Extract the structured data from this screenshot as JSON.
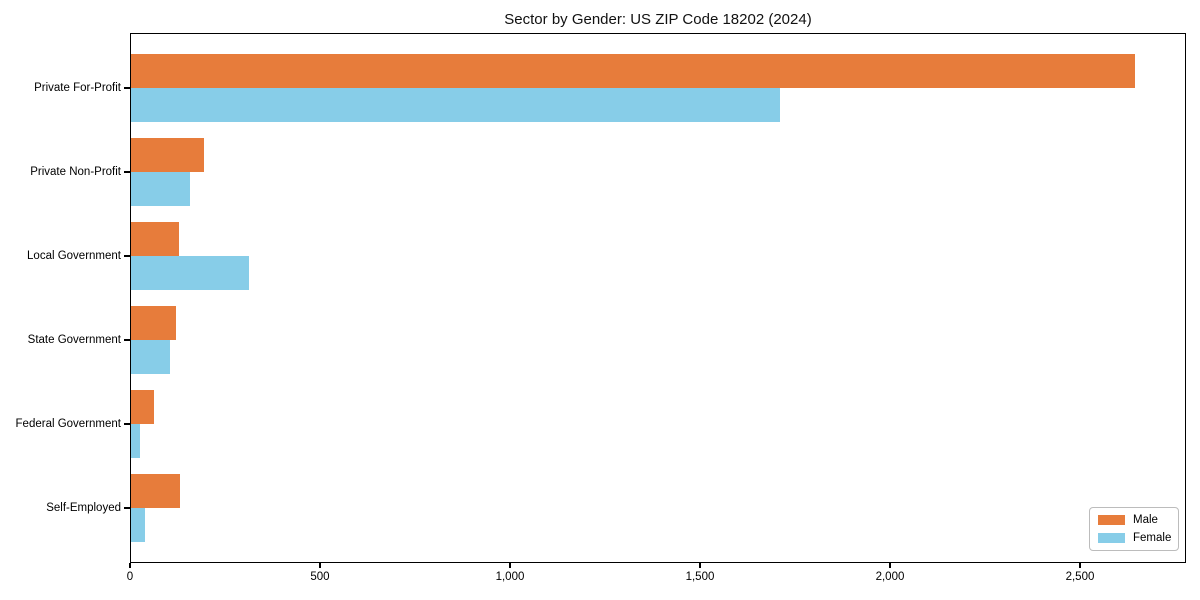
{
  "chart_data": {
    "type": "bar",
    "orientation": "horizontal",
    "title": "Sector by Gender: US ZIP Code 18202 (2024)",
    "categories": [
      "Private For-Profit",
      "Private Non-Profit",
      "Local Government",
      "State Government",
      "Federal Government",
      "Self-Employed"
    ],
    "series": [
      {
        "name": "Male",
        "color": "#e77c3b",
        "values": [
          2645,
          195,
          129,
          121,
          63,
          132
        ]
      },
      {
        "name": "Female",
        "color": "#87cde8",
        "values": [
          1710,
          158,
          313,
          105,
          26,
          40
        ]
      }
    ],
    "xlabel": "",
    "ylabel": "",
    "xlim": [
      0,
      2779
    ],
    "xticks": [
      0,
      500,
      1000,
      1500,
      2000,
      2500
    ],
    "xtick_labels": [
      "0",
      "500",
      "1,000",
      "1,500",
      "2,000",
      "2,500"
    ],
    "grid": false,
    "legend": {
      "position": "lower right",
      "entries": [
        "Male",
        "Female"
      ]
    },
    "background_color": "#ffffff",
    "axis_color": "#000000"
  }
}
